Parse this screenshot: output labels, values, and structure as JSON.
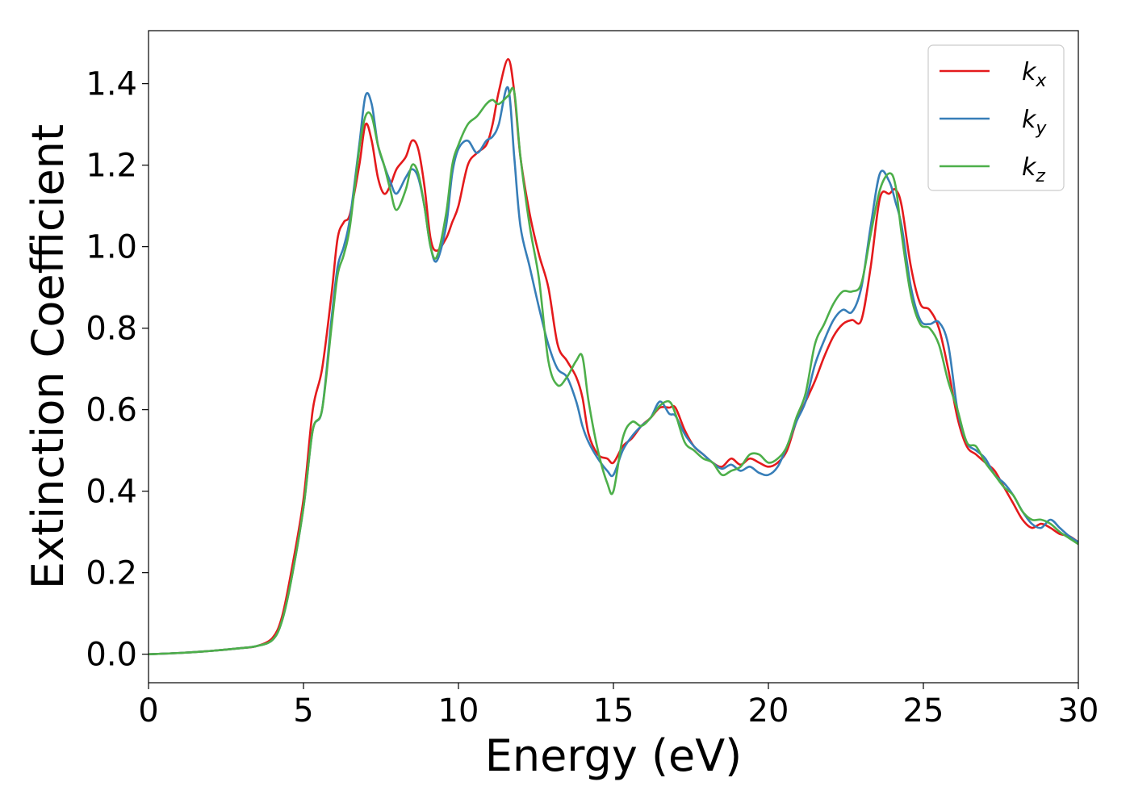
{
  "chart_data": {
    "type": "line",
    "xlabel": "Energy (eV)",
    "ylabel": "Extinction Coefficient",
    "xlim": [
      0,
      30
    ],
    "ylim": [
      -0.07,
      1.53
    ],
    "xticks": [
      "0",
      "5",
      "10",
      "15",
      "20",
      "25",
      "30"
    ],
    "yticks": [
      "0.0",
      "0.2",
      "0.4",
      "0.6",
      "0.8",
      "1.0",
      "1.2",
      "1.4"
    ],
    "grid": false,
    "legend_position": "top-right",
    "series": [
      {
        "name": "k",
        "subscript": "x",
        "color": "#e41a1c",
        "x": [
          0,
          1,
          2,
          3,
          3.5,
          4,
          4.3,
          4.6,
          5,
          5.3,
          5.6,
          5.9,
          6.1,
          6.3,
          6.5,
          6.8,
          7.0,
          7.2,
          7.4,
          7.6,
          7.8,
          8.0,
          8.3,
          8.5,
          8.7,
          8.9,
          9.1,
          9.3,
          9.6,
          9.8,
          10.0,
          10.3,
          10.6,
          10.9,
          11.1,
          11.3,
          11.6,
          11.8,
          12.0,
          12.3,
          12.6,
          12.9,
          13.2,
          13.5,
          13.8,
          14.0,
          14.2,
          14.5,
          14.8,
          15.0,
          15.3,
          15.6,
          15.9,
          16.2,
          16.5,
          16.8,
          17.0,
          17.3,
          17.6,
          17.9,
          18.2,
          18.5,
          18.8,
          19.1,
          19.4,
          19.7,
          20.0,
          20.3,
          20.6,
          20.9,
          21.2,
          21.5,
          21.8,
          22.1,
          22.4,
          22.7,
          23.0,
          23.3,
          23.6,
          23.9,
          24.1,
          24.3,
          24.6,
          24.9,
          25.2,
          25.5,
          25.8,
          26.1,
          26.4,
          26.7,
          27.0,
          27.3,
          27.6,
          27.9,
          28.2,
          28.5,
          28.8,
          29.1,
          29.4,
          29.7,
          30
        ],
        "y": [
          0.0,
          0.003,
          0.008,
          0.015,
          0.02,
          0.04,
          0.09,
          0.2,
          0.38,
          0.6,
          0.7,
          0.88,
          1.02,
          1.06,
          1.08,
          1.2,
          1.3,
          1.26,
          1.17,
          1.13,
          1.15,
          1.19,
          1.22,
          1.26,
          1.24,
          1.15,
          1.02,
          0.99,
          1.02,
          1.06,
          1.1,
          1.2,
          1.23,
          1.25,
          1.3,
          1.38,
          1.46,
          1.38,
          1.22,
          1.08,
          0.98,
          0.9,
          0.76,
          0.72,
          0.68,
          0.63,
          0.54,
          0.49,
          0.48,
          0.47,
          0.51,
          0.53,
          0.56,
          0.58,
          0.605,
          0.605,
          0.605,
          0.55,
          0.51,
          0.49,
          0.47,
          0.46,
          0.48,
          0.465,
          0.48,
          0.47,
          0.46,
          0.47,
          0.5,
          0.57,
          0.62,
          0.67,
          0.73,
          0.78,
          0.81,
          0.82,
          0.82,
          0.95,
          1.12,
          1.13,
          1.14,
          1.1,
          0.95,
          0.86,
          0.845,
          0.8,
          0.7,
          0.58,
          0.51,
          0.49,
          0.47,
          0.45,
          0.41,
          0.37,
          0.33,
          0.31,
          0.32,
          0.31,
          0.295,
          0.29,
          0.275
        ]
      },
      {
        "name": "k",
        "subscript": "y",
        "color": "#377eb8",
        "x": [
          0,
          1,
          2,
          3,
          3.5,
          4,
          4.3,
          4.6,
          5,
          5.3,
          5.6,
          5.9,
          6.1,
          6.3,
          6.5,
          6.8,
          7.0,
          7.2,
          7.4,
          7.6,
          7.8,
          8.0,
          8.3,
          8.5,
          8.7,
          8.9,
          9.1,
          9.3,
          9.6,
          9.8,
          10.0,
          10.3,
          10.6,
          10.9,
          11.1,
          11.3,
          11.6,
          11.8,
          12.0,
          12.3,
          12.6,
          12.9,
          13.2,
          13.5,
          13.8,
          14.0,
          14.2,
          14.5,
          14.8,
          15.0,
          15.3,
          15.6,
          15.9,
          16.2,
          16.5,
          16.8,
          17.0,
          17.3,
          17.6,
          17.9,
          18.2,
          18.5,
          18.8,
          19.1,
          19.4,
          19.7,
          20.0,
          20.3,
          20.6,
          20.9,
          21.2,
          21.5,
          21.8,
          22.1,
          22.4,
          22.7,
          23.0,
          23.3,
          23.6,
          23.9,
          24.1,
          24.3,
          24.6,
          24.9,
          25.2,
          25.5,
          25.8,
          26.1,
          26.4,
          26.7,
          27.0,
          27.3,
          27.6,
          27.9,
          28.2,
          28.5,
          28.8,
          29.1,
          29.4,
          29.7,
          30
        ],
        "y": [
          0.0,
          0.003,
          0.008,
          0.015,
          0.02,
          0.035,
          0.08,
          0.18,
          0.36,
          0.55,
          0.6,
          0.82,
          0.95,
          1.0,
          1.07,
          1.25,
          1.37,
          1.35,
          1.25,
          1.2,
          1.16,
          1.13,
          1.17,
          1.19,
          1.17,
          1.1,
          1.0,
          0.965,
          1.05,
          1.18,
          1.24,
          1.26,
          1.23,
          1.26,
          1.27,
          1.3,
          1.39,
          1.22,
          1.05,
          0.95,
          0.85,
          0.76,
          0.7,
          0.68,
          0.62,
          0.56,
          0.52,
          0.48,
          0.45,
          0.44,
          0.5,
          0.535,
          0.56,
          0.58,
          0.62,
          0.59,
          0.585,
          0.54,
          0.51,
          0.49,
          0.47,
          0.455,
          0.465,
          0.45,
          0.46,
          0.445,
          0.44,
          0.46,
          0.51,
          0.57,
          0.62,
          0.71,
          0.77,
          0.82,
          0.845,
          0.84,
          0.9,
          1.05,
          1.18,
          1.16,
          1.11,
          1.05,
          0.9,
          0.82,
          0.81,
          0.815,
          0.76,
          0.6,
          0.52,
          0.5,
          0.48,
          0.44,
          0.42,
          0.39,
          0.35,
          0.32,
          0.31,
          0.33,
          0.31,
          0.29,
          0.275
        ]
      },
      {
        "name": "k",
        "subscript": "z",
        "color": "#4daf4a",
        "x": [
          0,
          1,
          2,
          3,
          3.5,
          4,
          4.3,
          4.6,
          5,
          5.3,
          5.6,
          5.9,
          6.1,
          6.3,
          6.5,
          6.8,
          7.0,
          7.2,
          7.4,
          7.6,
          7.8,
          8.0,
          8.3,
          8.5,
          8.7,
          8.9,
          9.1,
          9.3,
          9.6,
          9.8,
          10.0,
          10.3,
          10.6,
          10.9,
          11.1,
          11.3,
          11.6,
          11.8,
          12.0,
          12.3,
          12.6,
          12.9,
          13.2,
          13.5,
          13.8,
          14.0,
          14.2,
          14.5,
          14.8,
          15.0,
          15.3,
          15.6,
          15.9,
          16.2,
          16.5,
          16.8,
          17.0,
          17.3,
          17.6,
          17.9,
          18.2,
          18.5,
          18.8,
          19.1,
          19.4,
          19.7,
          20.0,
          20.3,
          20.6,
          20.9,
          21.2,
          21.5,
          21.8,
          22.1,
          22.4,
          22.7,
          23.0,
          23.3,
          23.6,
          23.9,
          24.1,
          24.3,
          24.6,
          24.9,
          25.2,
          25.5,
          25.8,
          26.1,
          26.4,
          26.7,
          27.0,
          27.3,
          27.6,
          27.9,
          28.2,
          28.5,
          28.8,
          29.1,
          29.4,
          29.7,
          30
        ],
        "y": [
          0.0,
          0.003,
          0.008,
          0.015,
          0.02,
          0.035,
          0.08,
          0.18,
          0.36,
          0.55,
          0.6,
          0.8,
          0.93,
          0.98,
          1.05,
          1.24,
          1.32,
          1.32,
          1.25,
          1.2,
          1.14,
          1.09,
          1.14,
          1.2,
          1.18,
          1.1,
          1.0,
          0.975,
          1.08,
          1.2,
          1.25,
          1.3,
          1.32,
          1.35,
          1.36,
          1.35,
          1.37,
          1.38,
          1.22,
          1.05,
          0.92,
          0.72,
          0.66,
          0.68,
          0.72,
          0.73,
          0.62,
          0.5,
          0.42,
          0.4,
          0.53,
          0.57,
          0.56,
          0.58,
          0.61,
          0.62,
          0.59,
          0.52,
          0.5,
          0.48,
          0.47,
          0.44,
          0.45,
          0.46,
          0.49,
          0.49,
          0.47,
          0.48,
          0.51,
          0.58,
          0.64,
          0.76,
          0.81,
          0.86,
          0.89,
          0.89,
          0.91,
          1.03,
          1.14,
          1.18,
          1.15,
          1.03,
          0.88,
          0.81,
          0.8,
          0.76,
          0.67,
          0.6,
          0.52,
          0.51,
          0.47,
          0.44,
          0.41,
          0.39,
          0.35,
          0.33,
          0.33,
          0.32,
          0.3,
          0.285,
          0.27
        ]
      }
    ]
  }
}
